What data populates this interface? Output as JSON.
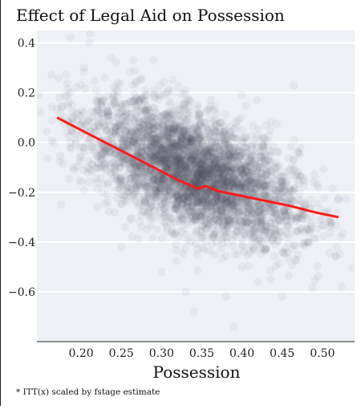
{
  "chart_data": {
    "type": "scatter",
    "title": "Effect of Legal Aid on Possession",
    "xlabel": "Possession",
    "ylabel": "",
    "footnote": "* ITT(x) scaled by fstage estimate",
    "xlim": [
      0.145,
      0.54
    ],
    "ylim": [
      -0.8,
      0.45
    ],
    "x_ticks": [
      0.2,
      0.25,
      0.3,
      0.35,
      0.4,
      0.45,
      0.5
    ],
    "x_tick_labels": [
      "0.20",
      "0.25",
      "0.30",
      "0.35",
      "0.40",
      "0.45",
      "0.50"
    ],
    "y_ticks": [
      0.4,
      0.2,
      0.0,
      -0.2,
      -0.4,
      -0.6
    ],
    "y_tick_labels": [
      "0.4",
      "0.2",
      "0.0",
      "−0.2",
      "−0.4",
      "−0.6"
    ],
    "grid": true,
    "legend": "none",
    "colors": {
      "panel": "#edf1f5",
      "gridline": "#ffffff",
      "points": "#3f4a55",
      "trend": "#ff1a1a"
    },
    "point_cloud_points": 4000,
    "series": [
      {
        "kind": "scatter-cloud",
        "description_points": [
          [
            0.175,
            -0.25
          ],
          [
            0.21,
            0.4
          ],
          [
            0.29,
            0.33
          ],
          [
            0.265,
            0.33
          ],
          [
            0.245,
            0.24
          ],
          [
            0.175,
            0.09
          ],
          [
            0.4,
            0.19
          ],
          [
            0.43,
            0.07
          ],
          [
            0.47,
            -0.04
          ],
          [
            0.49,
            -0.13
          ],
          [
            0.52,
            -0.23
          ],
          [
            0.51,
            -0.32
          ],
          [
            0.45,
            -0.44
          ],
          [
            0.4,
            -0.5
          ],
          [
            0.42,
            -0.56
          ],
          [
            0.45,
            -0.62
          ],
          [
            0.38,
            -0.62
          ],
          [
            0.34,
            -0.68
          ],
          [
            0.39,
            -0.74
          ],
          [
            0.33,
            -0.6
          ],
          [
            0.3,
            -0.52
          ],
          [
            0.25,
            -0.42
          ],
          [
            0.22,
            -0.26
          ],
          [
            0.19,
            -0.1
          ],
          [
            0.33,
            0.21
          ],
          [
            0.36,
            0.1
          ],
          [
            0.28,
            0.15
          ],
          [
            0.31,
            -0.12
          ],
          [
            0.35,
            -0.22
          ],
          [
            0.38,
            -0.3
          ],
          [
            0.3,
            -0.25
          ],
          [
            0.27,
            -0.05
          ],
          [
            0.41,
            -0.15
          ],
          [
            0.44,
            -0.28
          ]
        ]
      },
      {
        "kind": "line",
        "x": [
          0.17,
          0.2,
          0.23,
          0.26,
          0.29,
          0.32,
          0.345,
          0.355,
          0.37,
          0.4,
          0.43,
          0.46,
          0.49,
          0.52
        ],
        "y": [
          0.1,
          0.05,
          0.0,
          -0.05,
          -0.1,
          -0.15,
          -0.185,
          -0.175,
          -0.195,
          -0.215,
          -0.235,
          -0.255,
          -0.28,
          -0.3
        ]
      }
    ]
  }
}
